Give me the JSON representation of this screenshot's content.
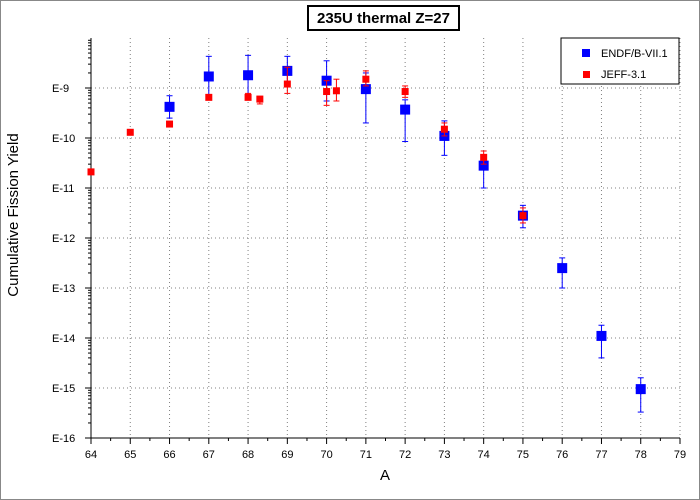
{
  "chart_data": {
    "type": "scatter",
    "title": "235U thermal Z=27",
    "xlabel": "A",
    "ylabel": "Cumulative Fission Yield",
    "xlim": [
      64,
      79
    ],
    "ylim_exp": [
      -16,
      -8
    ],
    "y_scale": "log",
    "x_ticks": [
      "64",
      "65",
      "66",
      "67",
      "68",
      "69",
      "70",
      "71",
      "72",
      "73",
      "74",
      "75",
      "76",
      "77",
      "78",
      "79"
    ],
    "y_ticks": [
      {
        "exp": -16,
        "label": "E-16"
      },
      {
        "exp": -15,
        "label": "E-15"
      },
      {
        "exp": -14,
        "label": "E-14"
      },
      {
        "exp": -13,
        "label": "E-13"
      },
      {
        "exp": -12,
        "label": "E-12"
      },
      {
        "exp": -11,
        "label": "E-11"
      },
      {
        "exp": -10,
        "label": "E-10"
      },
      {
        "exp": -9,
        "label": "E-9"
      }
    ],
    "grid": true,
    "legend_position": "top-right",
    "series": [
      {
        "name": "ENDF/B-VII.1",
        "color": "#0000ff",
        "marker": "square-large",
        "points": [
          {
            "x": 66,
            "y": 4.2e-10,
            "lo": 2.5e-10,
            "hi": 7e-10
          },
          {
            "x": 67,
            "y": 1.7e-09,
            "lo": 6.5e-10,
            "hi": 4.3e-09
          },
          {
            "x": 68,
            "y": 1.8e-09,
            "lo": 6.8e-10,
            "hi": 4.5e-09
          },
          {
            "x": 69,
            "y": 2.2e-09,
            "lo": 1.1e-09,
            "hi": 4.3e-09
          },
          {
            "x": 70,
            "y": 1.4e-09,
            "lo": 5.5e-10,
            "hi": 3.5e-09
          },
          {
            "x": 71,
            "y": 9.5e-10,
            "lo": 2e-10,
            "hi": 2e-09
          },
          {
            "x": 72,
            "y": 3.7e-10,
            "lo": 8.5e-11,
            "hi": 5.8e-10
          },
          {
            "x": 73,
            "y": 1.1e-10,
            "lo": 4.5e-11,
            "hi": 2.2e-10
          },
          {
            "x": 74,
            "y": 2.8e-11,
            "lo": 1e-11,
            "hi": 4.5e-11
          },
          {
            "x": 75,
            "y": 2.8e-12,
            "lo": 1.6e-12,
            "hi": 4.5e-12
          },
          {
            "x": 76,
            "y": 2.5e-13,
            "lo": 1e-13,
            "hi": 4e-13
          },
          {
            "x": 77,
            "y": 1.1e-14,
            "lo": 4e-15,
            "hi": 1.8e-14
          },
          {
            "x": 78,
            "y": 9.5e-16,
            "lo": 3.3e-16,
            "hi": 1.6e-15
          }
        ]
      },
      {
        "name": "JEFF-3.1",
        "color": "#ff0000",
        "marker": "square-small",
        "points": [
          {
            "x": 64,
            "y": 2.1e-11,
            "lo": 1.9e-11,
            "hi": 2.4e-11
          },
          {
            "x": 65,
            "y": 1.3e-10,
            "lo": 1.2e-10,
            "hi": 1.4e-10
          },
          {
            "x": 66,
            "y": 1.9e-10,
            "lo": 1.8e-10,
            "hi": 2e-10
          },
          {
            "x": 67,
            "y": 6.5e-10,
            "lo": 6.2e-10,
            "hi": 6.8e-10
          },
          {
            "x": 68,
            "y": 6.5e-10,
            "lo": 5.8e-10,
            "hi": 7.8e-10
          },
          {
            "x": 68.3,
            "y": 6e-10,
            "lo": 4.8e-10,
            "hi": 6.8e-10
          },
          {
            "x": 69,
            "y": 1.2e-09,
            "lo": 7.8e-10,
            "hi": 2.6e-09
          },
          {
            "x": 70,
            "y": 8.5e-10,
            "lo": 4.5e-10,
            "hi": 1.4e-09
          },
          {
            "x": 70.25,
            "y": 8.8e-10,
            "lo": 5.5e-10,
            "hi": 1.5e-09
          },
          {
            "x": 71,
            "y": 1.5e-09,
            "lo": 1.1e-09,
            "hi": 2.2e-09
          },
          {
            "x": 72,
            "y": 8.5e-10,
            "lo": 6.5e-10,
            "hi": 1.1e-09
          },
          {
            "x": 73,
            "y": 1.5e-10,
            "lo": 1.1e-10,
            "hi": 2e-10
          },
          {
            "x": 74,
            "y": 4.1e-11,
            "lo": 3e-11,
            "hi": 5.5e-11
          },
          {
            "x": 75,
            "y": 2.8e-12,
            "lo": 2e-12,
            "hi": 4e-12
          }
        ]
      }
    ]
  }
}
